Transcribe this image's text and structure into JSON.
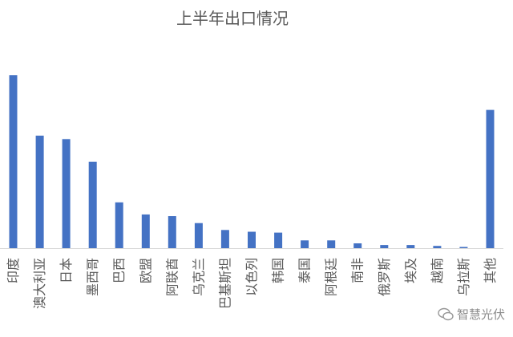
{
  "chart_data": {
    "type": "bar",
    "title": "上半年出口情况",
    "xlabel": "",
    "ylabel": "",
    "grid": false,
    "legend": false,
    "ylim": [
      0,
      100
    ],
    "bar_color": "#4472c4",
    "categories": [
      "印度",
      "澳大利亚",
      "日本",
      "墨西哥",
      "巴西",
      "欧盟",
      "阿联酋",
      "乌克兰",
      "巴基斯坦",
      "以色列",
      "韩国",
      "泰国",
      "阿根廷",
      "南非",
      "俄罗斯",
      "埃及",
      "越南",
      "乌拉斯",
      "其他"
    ],
    "values": [
      100,
      65,
      63,
      50,
      26.5,
      19.5,
      18.5,
      14.5,
      10.5,
      9.5,
      9,
      4.5,
      4.5,
      2.8,
      1.8,
      1.8,
      1.3,
      0.7,
      80
    ]
  },
  "watermark": {
    "text": "智慧光伏",
    "icon": "wechat-bubble-icon"
  }
}
